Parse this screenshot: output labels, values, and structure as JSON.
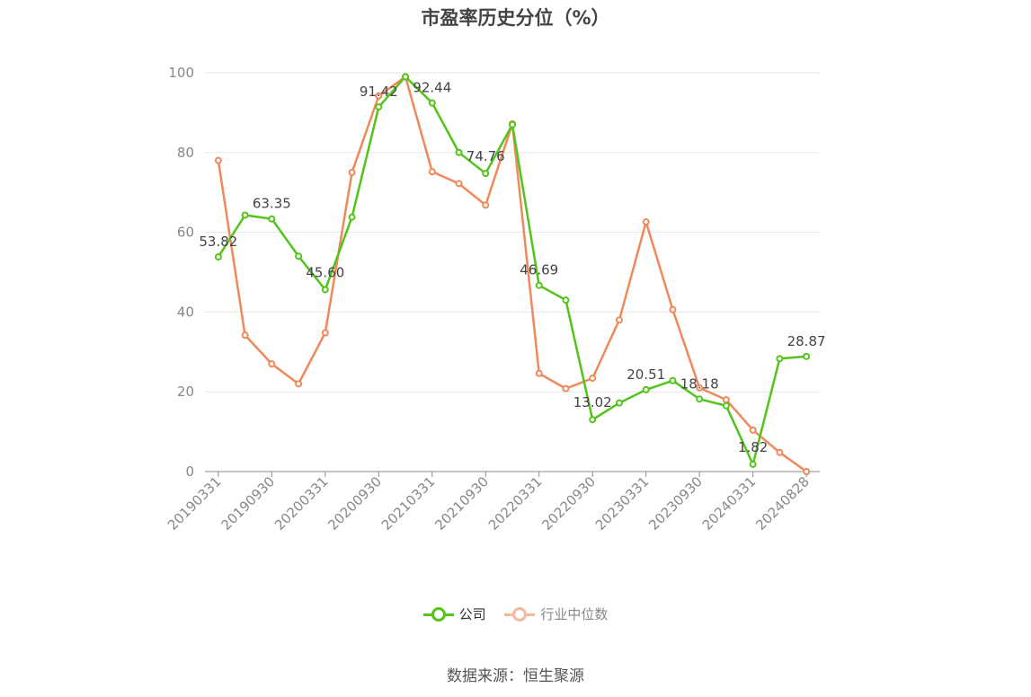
{
  "chart_data": {
    "type": "line",
    "title": "市盈率历史分位（%）",
    "x": [
      "20190331",
      "20190630",
      "20190930",
      "20191231",
      "20200331",
      "20200630",
      "20200930",
      "20201231",
      "20210331",
      "20210630",
      "20210930",
      "20211231",
      "20220331",
      "20220630",
      "20220930",
      "20221231",
      "20230331",
      "20230630",
      "20230930",
      "20231231",
      "20240331",
      "20240630",
      "20240828"
    ],
    "x_tick_labels": [
      "20190331",
      "20190930",
      "20200331",
      "20200930",
      "20210331",
      "20210930",
      "20220331",
      "20220930",
      "20230331",
      "20230930",
      "20240331",
      "20240828"
    ],
    "ylim": [
      0,
      100
    ],
    "y_ticks": [
      0,
      20,
      40,
      60,
      80,
      100
    ],
    "grid": true,
    "legend_position": "bottom",
    "series": [
      {
        "name": "公司",
        "color": "#52c41a",
        "values": [
          53.82,
          64.3,
          63.35,
          54.0,
          45.6,
          63.8,
          91.42,
          99.0,
          92.44,
          80.0,
          74.76,
          87.0,
          46.69,
          43.0,
          13.02,
          17.2,
          20.51,
          22.8,
          18.18,
          16.5,
          1.82,
          28.3,
          28.87
        ],
        "labels": [
          "53.82",
          null,
          "63.35",
          null,
          "45.60",
          null,
          "91.42",
          null,
          "92.44",
          null,
          "74.76",
          null,
          "46.69",
          null,
          "13.02",
          null,
          "20.51",
          null,
          "18.18",
          null,
          "1.82",
          null,
          "28.87"
        ]
      },
      {
        "name": "行业中位数",
        "color": "#f0895a",
        "values": [
          78.0,
          34.2,
          27.0,
          22.0,
          34.8,
          75.0,
          94.2,
          99.0,
          75.2,
          72.2,
          66.8,
          87.2,
          24.6,
          20.8,
          23.4,
          38.0,
          62.6,
          40.6,
          21.0,
          18.0,
          10.4,
          4.8,
          0.0
        ],
        "labels": []
      }
    ]
  },
  "legend": {
    "items": [
      {
        "label": "公司",
        "color": "#52c41a",
        "active": true
      },
      {
        "label": "行业中位数",
        "color": "#f4b99f",
        "active": false
      }
    ]
  },
  "source_text": "数据来源：恒生聚源"
}
